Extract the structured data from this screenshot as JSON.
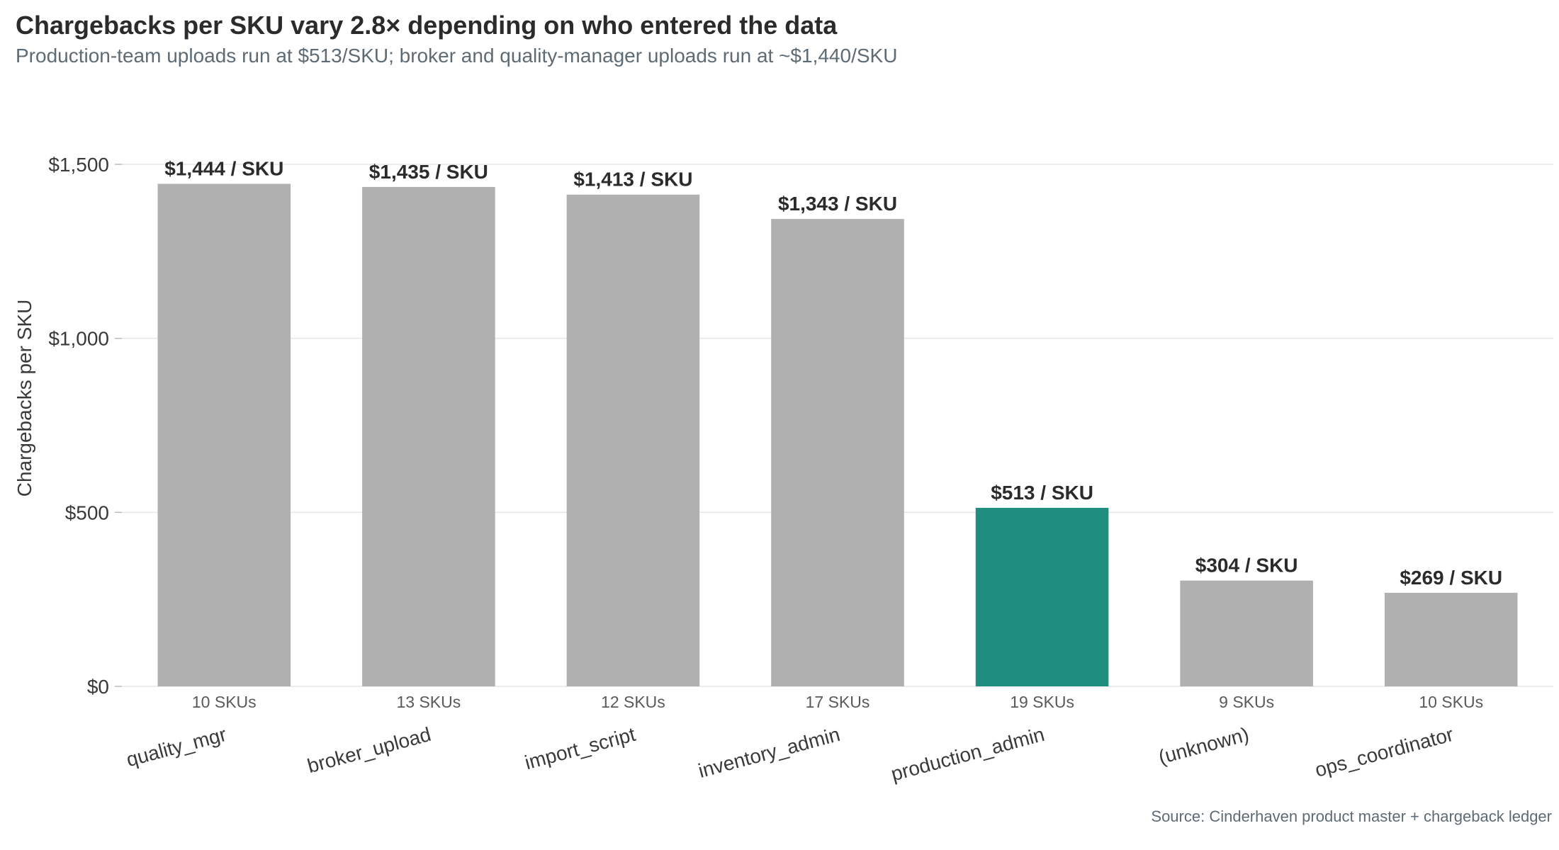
{
  "chart_data": {
    "type": "bar",
    "title": "Chargebacks per SKU vary 2.8× depending on who entered the data",
    "subtitle": "Production-team uploads run at $513/SKU; broker and quality-manager uploads run at ~$1,440/SKU",
    "caption": "Source: Cinderhaven product master + chargeback ledger",
    "xlabel": "",
    "ylabel": "Chargebacks per SKU",
    "ylim": [
      0,
      1500
    ],
    "yticks": [
      0,
      500,
      1000,
      1500
    ],
    "ytick_labels": [
      "$0",
      "$500",
      "$1,000",
      "$1,500"
    ],
    "grid": "horizontal",
    "legend": "none",
    "categories": [
      "quality_mgr",
      "broker_upload",
      "import_script",
      "inventory_admin",
      "production_admin",
      "(unknown)",
      "ops_coordinator"
    ],
    "values": [
      1444,
      1435,
      1413,
      1343,
      513,
      304,
      269
    ],
    "value_labels": [
      "$1,444 / SKU",
      "$1,435 / SKU",
      "$1,413 / SKU",
      "$1,343 / SKU",
      "$513 / SKU",
      "$304 / SKU",
      "$269 / SKU"
    ],
    "sku_counts": [
      "10 SKUs",
      "13 SKUs",
      "12 SKUs",
      "17 SKUs",
      "19 SKUs",
      "9 SKUs",
      "10 SKUs"
    ],
    "highlight_category": "production_admin",
    "colors": {
      "default_bar": "#b0b0b0",
      "highlight_bar": "#1f8d80"
    }
  }
}
